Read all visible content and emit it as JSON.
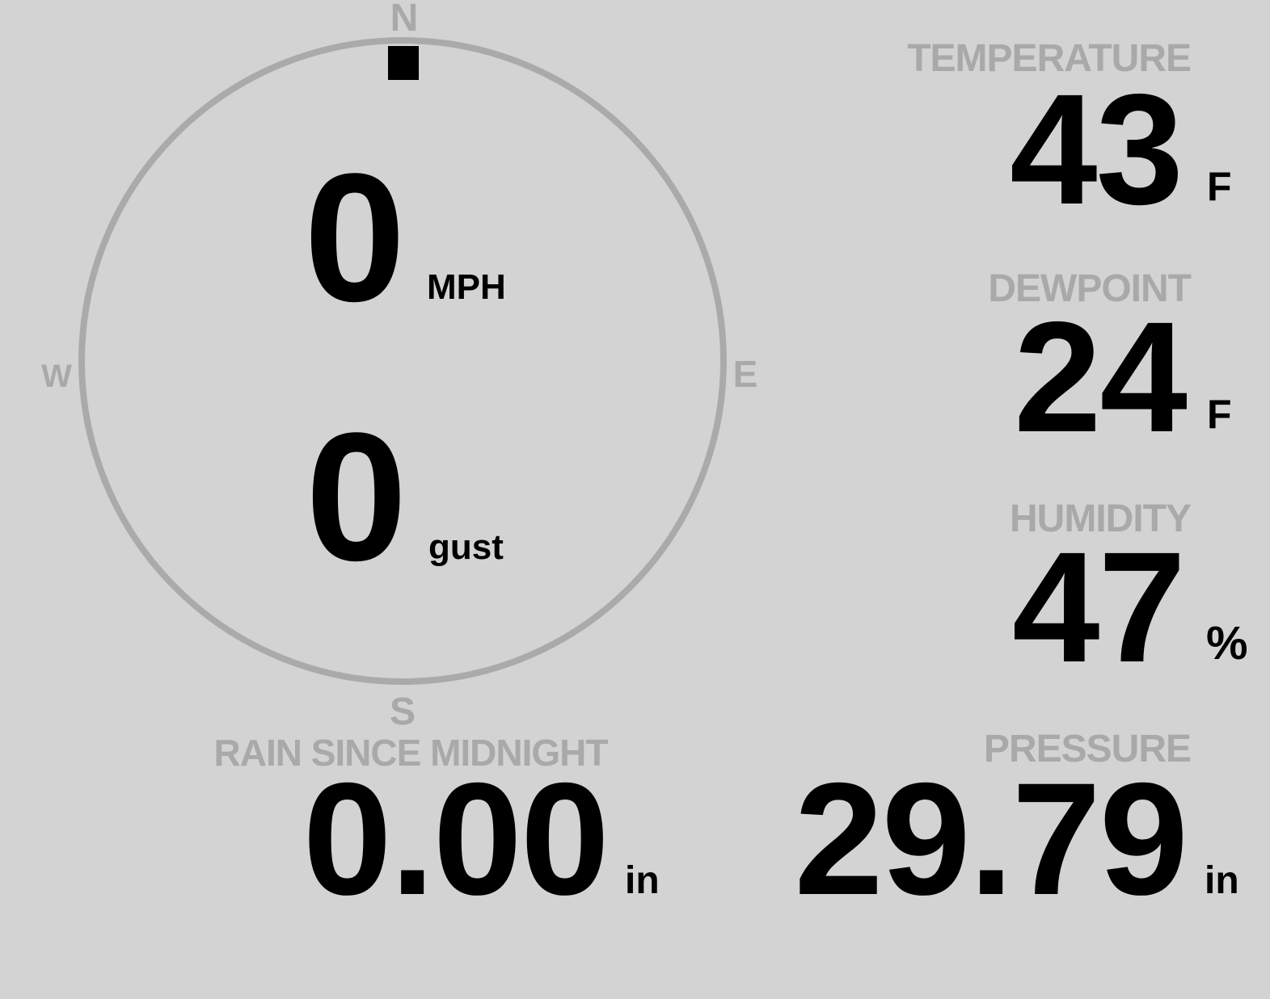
{
  "colors": {
    "background": "#d3d3d3",
    "label": "#a9a9a9",
    "value": "#000000",
    "dial": "#aaaaaa"
  },
  "compass": {
    "north": "N",
    "south": "S",
    "east": "E",
    "west": "W",
    "wind_direction_deg": 0,
    "wind_speed": "0",
    "wind_speed_unit": "MPH",
    "gust": "0",
    "gust_label": "gust"
  },
  "rain": {
    "label": "RAIN SINCE MIDNIGHT",
    "value": "0.00",
    "unit": "in"
  },
  "temperature": {
    "label": "TEMPERATURE",
    "value": "43",
    "unit": "F"
  },
  "dewpoint": {
    "label": "DEWPOINT",
    "value": "24",
    "unit": "F"
  },
  "humidity": {
    "label": "HUMIDITY",
    "value": "47",
    "unit": "%"
  },
  "pressure": {
    "label": "PRESSURE",
    "value": "29.79",
    "unit": "in"
  }
}
